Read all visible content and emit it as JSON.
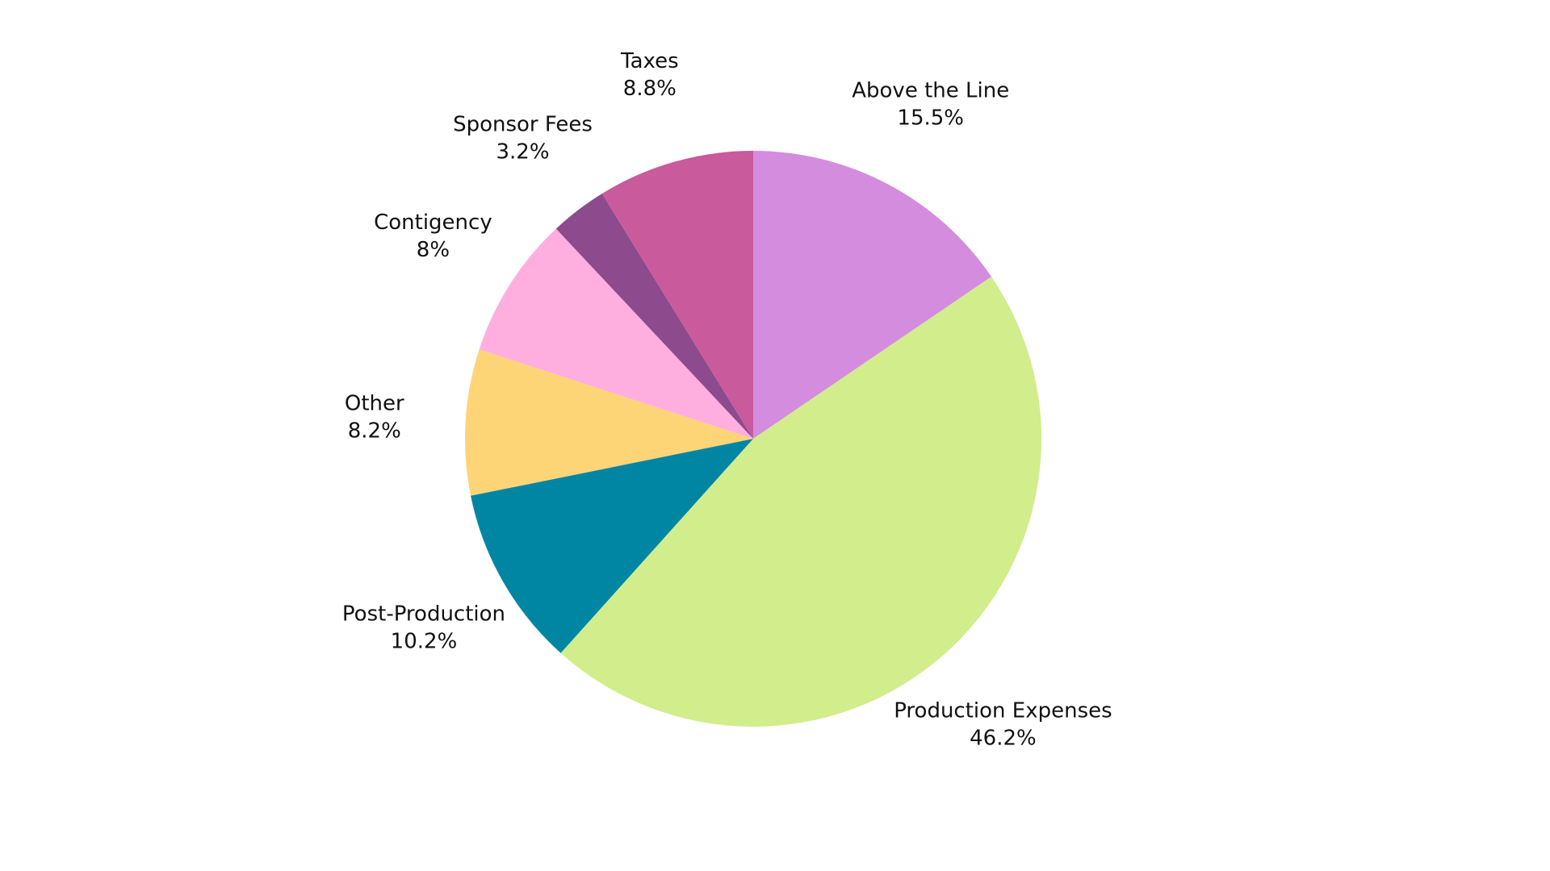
{
  "chart_data": {
    "type": "pie",
    "title": "",
    "start_angle_deg": 0,
    "direction": "clockwise",
    "legend": "none",
    "slices": [
      {
        "label": "Above the Line",
        "value_text": "15.5%",
        "value": 15.5,
        "color": "#d48cde"
      },
      {
        "label": "Production Expenses",
        "value_text": "46.2%",
        "value": 46.2,
        "color": "#d1ed8c"
      },
      {
        "label": "Post-Production",
        "value_text": "10.2%",
        "value": 10.2,
        "color": "#0086a3"
      },
      {
        "label": "Other",
        "value_text": "8.2%",
        "value": 8.2,
        "color": "#fdd576"
      },
      {
        "label": "Contigency",
        "value_text": "8%",
        "value": 8,
        "color": "#ffaee0"
      },
      {
        "label": "Sponsor Fees",
        "value_text": "3.2%",
        "value": 3.2,
        "color": "#8d4a8c"
      },
      {
        "label": "Taxes",
        "value_text": "8.8%",
        "value": 8.8,
        "color": "#c95a9b"
      }
    ]
  }
}
